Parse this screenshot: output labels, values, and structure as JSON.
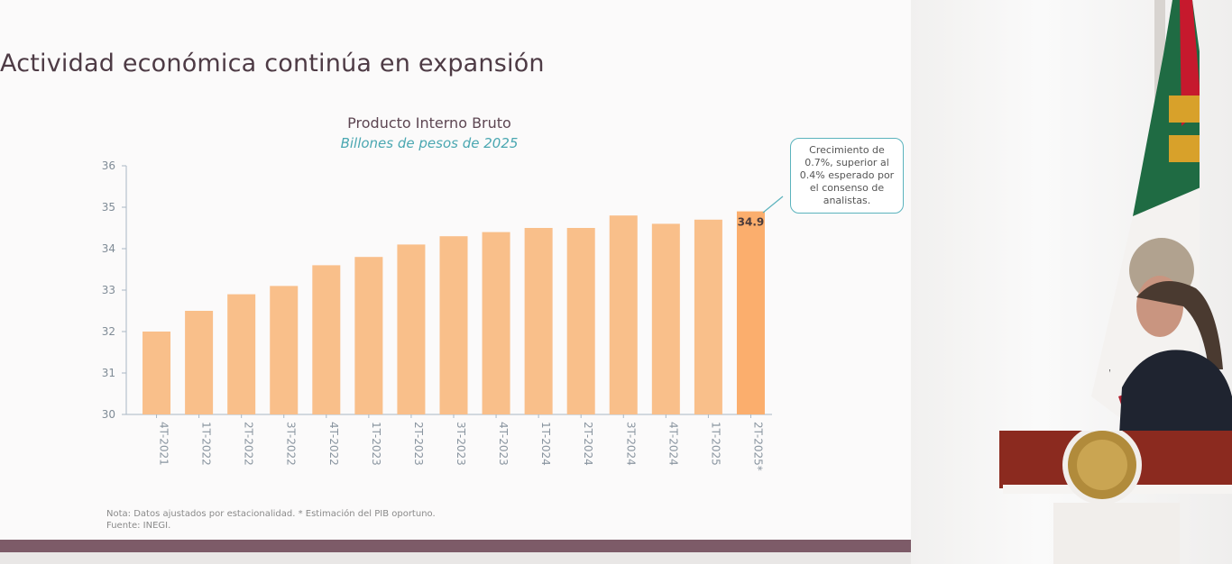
{
  "slide": {
    "title": "Actividad económica continúa en expansión",
    "note_line1": "Nota: Datos ajustados por estacionalidad. * Estimación del PIB oportuno.",
    "note_line2": "Fuente: INEGI."
  },
  "callout": {
    "text": "Crecimiento de 0.7%, superior al 0.4% esperado por el consenso de analistas."
  },
  "colors": {
    "bar": "#f9bf8a",
    "bar_highlight": "#fbae6d",
    "axis": "#a9b7c4",
    "title": "#5d4652",
    "subtitle": "#4aa7b1",
    "callout_border": "#5bb3bd"
  },
  "chart_data": {
    "type": "bar",
    "title": "Producto Interno Bruto",
    "subtitle": "Billones de pesos de 2025",
    "categories": [
      "4T-2021",
      "1T-2022",
      "2T-2022",
      "3T-2022",
      "4T-2022",
      "1T-2023",
      "2T-2023",
      "3T-2023",
      "4T-2023",
      "1T-2024",
      "2T-2024",
      "3T-2024",
      "4T-2024",
      "1T-2025",
      "2T-2025*"
    ],
    "values": [
      32.0,
      32.5,
      32.9,
      33.1,
      33.6,
      33.8,
      34.1,
      34.3,
      34.4,
      34.5,
      34.5,
      34.8,
      34.6,
      34.7,
      34.9
    ],
    "data_labels": [
      "",
      "",
      "",
      "",
      "",
      "",
      "",
      "",
      "",
      "",
      "",
      "",
      "",
      "",
      "34.9"
    ],
    "yticks": [
      "30",
      "31",
      "32",
      "33",
      "34",
      "35",
      "36"
    ],
    "ylim": [
      30,
      36
    ],
    "grid": false,
    "legend": "none"
  }
}
